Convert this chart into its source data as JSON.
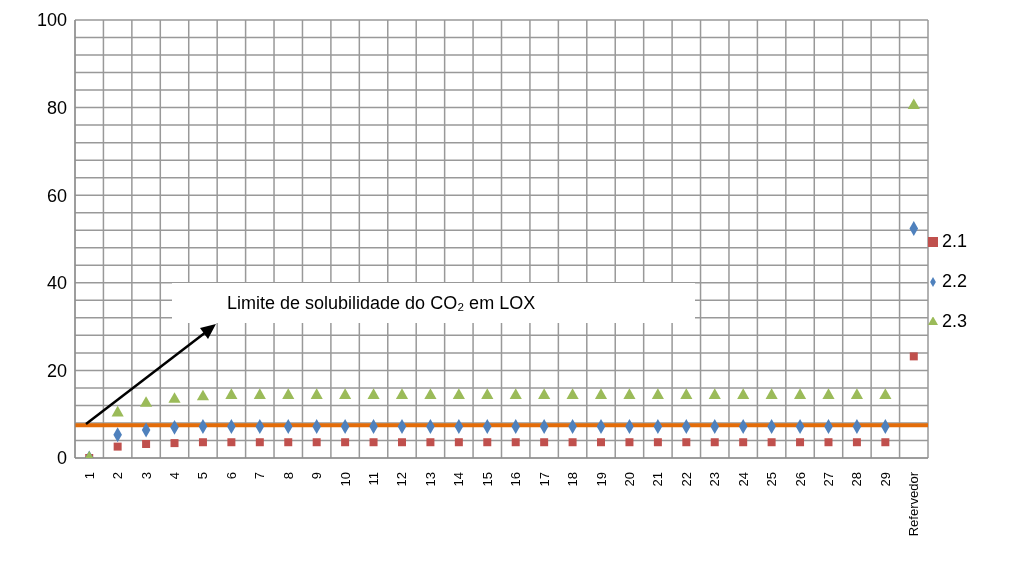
{
  "chart_data": {
    "type": "scatter",
    "categories": [
      "1",
      "2",
      "3",
      "4",
      "5",
      "6",
      "7",
      "8",
      "9",
      "10",
      "11",
      "12",
      "13",
      "14",
      "15",
      "16",
      "17",
      "18",
      "19",
      "20",
      "21",
      "22",
      "23",
      "24",
      "25",
      "26",
      "27",
      "28",
      "29",
      "Refervedor"
    ],
    "series": [
      {
        "name": "2.1",
        "color": "#c0504d",
        "marker": "square",
        "values": [
          0,
          2.6,
          3.2,
          3.4,
          3.6,
          3.6,
          3.6,
          3.6,
          3.6,
          3.6,
          3.6,
          3.6,
          3.6,
          3.6,
          3.6,
          3.6,
          3.6,
          3.6,
          3.6,
          3.6,
          3.6,
          3.6,
          3.6,
          3.6,
          3.6,
          3.6,
          3.6,
          3.6,
          3.6,
          23.2
        ]
      },
      {
        "name": "2.2",
        "color": "#4f81bd",
        "marker": "diamond",
        "values": [
          0,
          5.3,
          6.4,
          7.0,
          7.2,
          7.2,
          7.2,
          7.2,
          7.2,
          7.2,
          7.2,
          7.2,
          7.2,
          7.2,
          7.2,
          7.2,
          7.2,
          7.2,
          7.2,
          7.2,
          7.2,
          7.2,
          7.2,
          7.2,
          7.2,
          7.2,
          7.2,
          7.2,
          7.2,
          52.4
        ]
      },
      {
        "name": "2.3",
        "color": "#9bbb59",
        "marker": "triangle",
        "values": [
          0,
          10.3,
          12.5,
          13.4,
          14.0,
          14.3,
          14.3,
          14.3,
          14.3,
          14.3,
          14.3,
          14.3,
          14.3,
          14.3,
          14.3,
          14.3,
          14.3,
          14.3,
          14.3,
          14.3,
          14.3,
          14.3,
          14.3,
          14.3,
          14.3,
          14.3,
          14.3,
          14.3,
          14.3,
          80.5
        ]
      }
    ],
    "ylim": [
      0,
      100
    ],
    "yticks": [
      0,
      {
        "value": 4,
        "label": null
      },
      {
        "value": 8,
        "label": null
      },
      {
        "value": 12,
        "label": null
      },
      {
        "value": 16,
        "label": null
      },
      20,
      {
        "value": 24,
        "label": null
      },
      {
        "value": 28,
        "label": null
      },
      {
        "value": 32,
        "label": null
      },
      {
        "value": 36,
        "label": null
      },
      40,
      {
        "value": 44,
        "label": null
      },
      {
        "value": 48,
        "label": null
      },
      {
        "value": 52,
        "label": null
      },
      {
        "value": 56,
        "label": null
      },
      60,
      {
        "value": 64,
        "label": null
      },
      {
        "value": 68,
        "label": null
      },
      {
        "value": 72,
        "label": null
      },
      {
        "value": 76,
        "label": null
      },
      80,
      {
        "value": 84,
        "label": null
      },
      {
        "value": 88,
        "label": null
      },
      {
        "value": 92,
        "label": null
      },
      {
        "value": 96,
        "label": null
      },
      100
    ],
    "ref_lines": [
      {
        "axis": "y",
        "value": 7.5,
        "color": "#e36c09"
      }
    ],
    "annotations": [
      "Limite de solubilidade do CO₂ em LOX"
    ],
    "grid": true,
    "legend": "right"
  }
}
